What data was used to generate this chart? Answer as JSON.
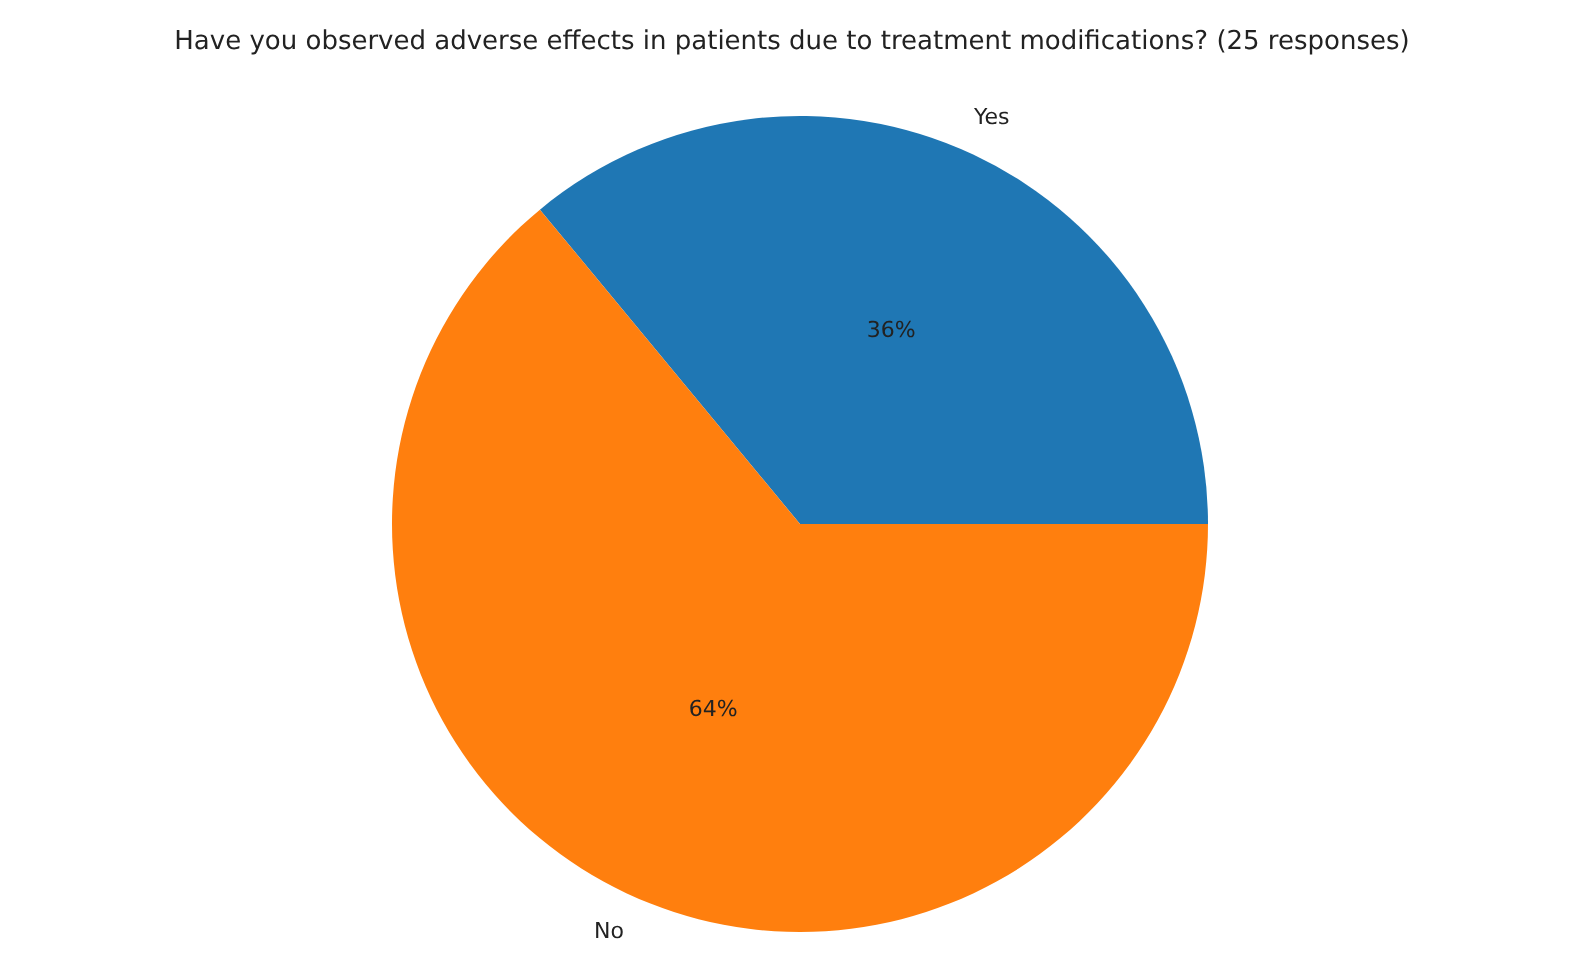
{
  "chart_data": {
    "type": "pie",
    "title": "Have you observed adverse effects in patients due to treatment modifications? (25 responses)",
    "categories": [
      "Yes",
      "No"
    ],
    "values": [
      36,
      64
    ],
    "colors": [
      "#1f77b4",
      "#ff7f0e"
    ],
    "value_labels": [
      "36%",
      "64%"
    ],
    "legend": false
  }
}
